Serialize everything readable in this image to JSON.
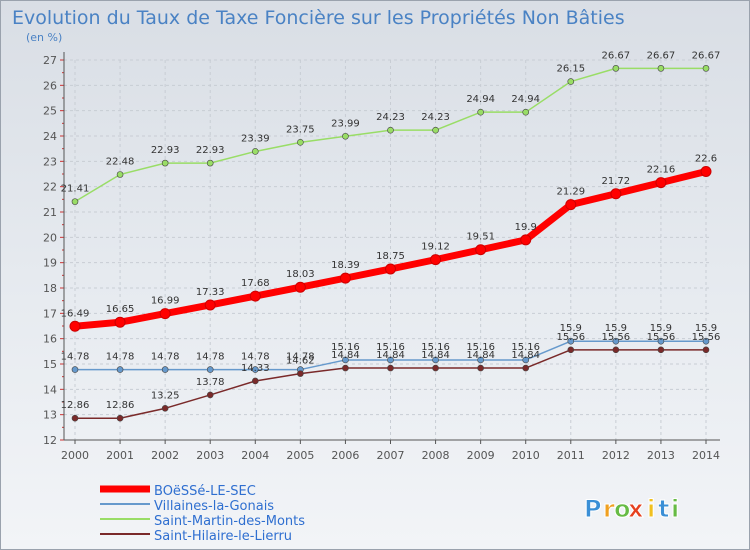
{
  "chart_data": {
    "type": "line",
    "title": "Evolution du Taux de Taxe Foncière sur les Propriétés Non Bâties",
    "subtitle": "(en %)",
    "x": [
      "2000",
      "2001",
      "2002",
      "2003",
      "2004",
      "2005",
      "2006",
      "2007",
      "2008",
      "2009",
      "2010",
      "2011",
      "2012",
      "2013",
      "2014"
    ],
    "ylim": [
      12,
      27
    ],
    "yticks": [
      "12",
      "13",
      "14",
      "15",
      "16",
      "17",
      "18",
      "19",
      "20",
      "21",
      "22",
      "23",
      "24",
      "25",
      "26",
      "27"
    ],
    "grid": true,
    "legend_position": "bottom-left",
    "series": [
      {
        "name": "BOëSSé-LE-SEC",
        "color": "#ff0000",
        "values": [
          16.49,
          16.65,
          16.99,
          17.33,
          17.68,
          18.03,
          18.39,
          18.75,
          19.12,
          19.51,
          19.9,
          21.29,
          21.72,
          22.16,
          22.6
        ],
        "labels": [
          "16.49",
          "16.65",
          "16.99",
          "17.33",
          "17.68",
          "18.03",
          "18.39",
          "18.75",
          "19.12",
          "19.51",
          "19.9",
          "21.29",
          "21.72",
          "22.16",
          "22.6"
        ]
      },
      {
        "name": "Villaines-la-Gonais",
        "color": "#6699cc",
        "values": [
          14.78,
          14.78,
          14.78,
          14.78,
          14.78,
          14.78,
          15.16,
          15.16,
          15.16,
          15.16,
          15.16,
          15.9,
          15.9,
          15.9,
          15.9
        ],
        "labels": [
          "14.78",
          "14.78",
          "14.78",
          "14.78",
          "14.78",
          "14.78",
          "15.16",
          "15.16",
          "15.16",
          "15.16",
          "15.16",
          "15.9",
          "15.9",
          "15.9",
          "15.9"
        ]
      },
      {
        "name": "Saint-Martin-des-Monts",
        "color": "#99dd66",
        "values": [
          21.41,
          22.48,
          22.93,
          22.93,
          23.39,
          23.75,
          23.99,
          24.23,
          24.23,
          24.94,
          24.94,
          26.15,
          26.67,
          26.67,
          26.67
        ],
        "labels": [
          "21.41",
          "22.48",
          "22.93",
          "22.93",
          "23.39",
          "23.75",
          "23.99",
          "24.23",
          "24.23",
          "24.94",
          "24.94",
          "26.15",
          "26.67",
          "26.67",
          "26.67"
        ]
      },
      {
        "name": "Saint-Hilaire-le-Lierru",
        "color": "#7a2a2a",
        "values": [
          12.86,
          12.86,
          13.25,
          13.78,
          14.33,
          14.62,
          14.84,
          14.84,
          14.84,
          14.84,
          14.84,
          15.56,
          15.56,
          15.56,
          15.56
        ],
        "labels": [
          "12.86",
          "12.86",
          "13.25",
          "13.78",
          "14.33",
          "14.62",
          "14.84",
          "14.84",
          "14.84",
          "14.84",
          "14.84",
          "15.56",
          "15.56",
          "15.56",
          "15.56"
        ]
      }
    ]
  },
  "logo": {
    "letters": [
      "P",
      "r",
      "o",
      "x",
      "i",
      "t",
      "i"
    ],
    "colors": [
      "#3a8fd6",
      "#f0a020",
      "#66bb44",
      "#e6401e",
      "#f0c020",
      "#3a8fd6",
      "#66bb44"
    ]
  },
  "colors": {
    "title": "#4a82c4",
    "axis": "#555555",
    "grid": "#c8cdd4",
    "tick_marks": "#cc3333",
    "value_label": "#333333",
    "legend_text": "#2f6fd0"
  }
}
